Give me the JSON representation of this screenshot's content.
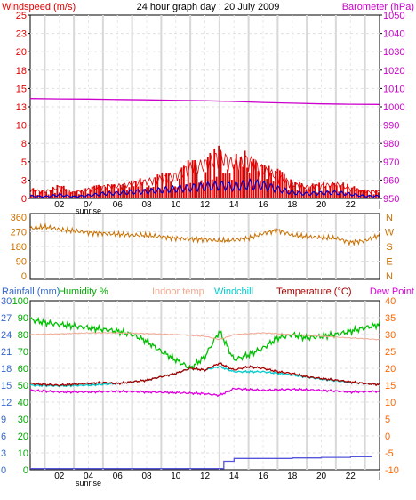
{
  "title": "24 hour graph day : 20 July 2009",
  "colors": {
    "windspeed": "#e00000",
    "windavg": "#0000cc",
    "barometer": "#cc00cc",
    "direction": "#c87000",
    "humidity": "#00c000",
    "rainfall": "#5555dd",
    "indoor": "#f0a890",
    "windchill": "#00cccc",
    "temperature": "#aa0000",
    "dewpoint": "#dd00dd",
    "axis_left_blue": "#3366cc",
    "axis_left_green": "#00aa00",
    "axis_right_orange": "#ff6600"
  },
  "chart_data": [
    {
      "type": "bar",
      "label_left": "Windspeed (m/s)",
      "label_right": "Barometer (hPa)",
      "ticks_left": [
        "25",
        "23",
        "20",
        "18",
        "15",
        "13",
        "10",
        "8",
        "5",
        "3",
        "0"
      ],
      "ticks_right": [
        "1050",
        "1040",
        "1030",
        "1020",
        "1010",
        "1000",
        "990",
        "980",
        "970",
        "960",
        "950"
      ],
      "x_ticks": [
        "02",
        "04",
        "06",
        "08",
        "10",
        "12",
        "14",
        "16",
        "18",
        "20",
        "22"
      ],
      "x_sub": "sunrise",
      "ylim_left": [
        0,
        25
      ],
      "ylim_right": [
        950,
        1050
      ],
      "series": [
        {
          "name": "Windspeed (m/s)",
          "kind": "gust_bars",
          "x": [
            0,
            1,
            2,
            3,
            4,
            5,
            6,
            7,
            8,
            9,
            10,
            11,
            12,
            13,
            14,
            15,
            16,
            17,
            18,
            19,
            20,
            21,
            22,
            23
          ],
          "values": [
            1.5,
            1.2,
            2.0,
            1.0,
            1.6,
            2.0,
            2.2,
            2.5,
            3.0,
            3.5,
            4.0,
            5.5,
            6.0,
            7.5,
            6.0,
            6.8,
            5.0,
            4.0,
            2.5,
            2.0,
            2.2,
            2.5,
            1.8,
            1.2
          ]
        },
        {
          "name": "Wind average",
          "kind": "line",
          "x": [
            0,
            1,
            2,
            3,
            4,
            5,
            6,
            7,
            8,
            9,
            10,
            11,
            12,
            13,
            14,
            15,
            16,
            17,
            18,
            19,
            20,
            21,
            22,
            23
          ],
          "values": [
            0.4,
            0.3,
            0.6,
            0.3,
            0.5,
            0.8,
            0.9,
            1.1,
            1.2,
            1.4,
            1.6,
            1.8,
            2.0,
            2.2,
            2.0,
            2.4,
            2.2,
            1.6,
            1.0,
            0.8,
            0.9,
            1.0,
            0.7,
            0.4
          ]
        },
        {
          "name": "Barometer (hPa)",
          "kind": "line",
          "axis": "right",
          "x": [
            0,
            2,
            4,
            6,
            8,
            10,
            12,
            14,
            16,
            18,
            20,
            22,
            24
          ],
          "values": [
            1004.5,
            1004.3,
            1004.2,
            1004.0,
            1003.8,
            1003.5,
            1003.3,
            1002.9,
            1002.4,
            1002.0,
            1001.6,
            1001.4,
            1001.3
          ]
        }
      ]
    },
    {
      "type": "line",
      "ticks_left": [
        "360",
        "270",
        "180",
        "90",
        "0"
      ],
      "ticks_right": [
        "N",
        "W",
        "S",
        "E",
        "N"
      ],
      "ylim": [
        0,
        360
      ],
      "series": [
        {
          "name": "Wind direction",
          "x": [
            0,
            1,
            2,
            3,
            4,
            5,
            6,
            7,
            8,
            9,
            10,
            11,
            12,
            13,
            14,
            15,
            16,
            17,
            18,
            19,
            20,
            21,
            22,
            23,
            24
          ],
          "values": [
            290,
            300,
            285,
            275,
            265,
            260,
            255,
            250,
            248,
            240,
            230,
            225,
            222,
            215,
            220,
            230,
            260,
            280,
            250,
            240,
            235,
            230,
            205,
            215,
            250
          ]
        }
      ]
    },
    {
      "type": "line",
      "labels": [
        "Rainfall (mm)",
        "Humidity %",
        "Indoor temp",
        "Windchill",
        "Temperature (°C)",
        "Dew Point"
      ],
      "ticks_rain": [
        "30",
        "27",
        "24",
        "21",
        "18",
        "15",
        "12",
        "9",
        "6",
        "3",
        "0"
      ],
      "ticks_humidity": [
        "100",
        "90",
        "80",
        "70",
        "60",
        "50",
        "40",
        "30",
        "20",
        "10",
        "0"
      ],
      "ticks_temp": [
        "40",
        "35",
        "30",
        "25",
        "20",
        "15",
        "10",
        "5",
        "0",
        "-5",
        "-10"
      ],
      "x_ticks": [
        "02",
        "04",
        "06",
        "08",
        "10",
        "12",
        "14",
        "16",
        "18",
        "20",
        "22"
      ],
      "x_sub": "sunrise",
      "ylim_temp": [
        -10,
        40
      ],
      "ylim_humidity": [
        0,
        100
      ],
      "ylim_rain": [
        0,
        30
      ],
      "series": [
        {
          "name": "Humidity %",
          "axis": "humidity",
          "x": [
            0,
            1,
            2,
            3,
            4,
            5,
            6,
            7,
            8,
            9,
            10,
            11,
            12,
            13,
            14,
            15,
            16,
            17,
            18,
            19,
            20,
            21,
            22,
            23,
            24
          ],
          "values": [
            89,
            87,
            86,
            85,
            84,
            83,
            82,
            80,
            76,
            70,
            65,
            60,
            67,
            82,
            65,
            68,
            72,
            78,
            80,
            78,
            79,
            80,
            82,
            84,
            86
          ]
        },
        {
          "name": "Indoor temp",
          "axis": "temp",
          "x": [
            0,
            2,
            4,
            6,
            8,
            10,
            12,
            13,
            14,
            16,
            18,
            20,
            22,
            24
          ],
          "values": [
            30.0,
            30.2,
            30.5,
            30.5,
            30.3,
            30.0,
            29.5,
            28.5,
            30.0,
            30.5,
            30.0,
            29.5,
            29.0,
            28.5
          ]
        },
        {
          "name": "Windchill",
          "axis": "temp",
          "x": [
            0,
            2,
            4,
            6,
            8,
            10,
            11,
            12,
            13,
            14,
            16,
            18,
            20,
            22,
            24
          ],
          "values": [
            15.0,
            14.8,
            15.0,
            15.5,
            16.5,
            18.5,
            20.0,
            19.5,
            20.5,
            19.0,
            19.0,
            18.0,
            16.8,
            15.8,
            15.2
          ]
        },
        {
          "name": "Temperature (°C)",
          "axis": "temp",
          "x": [
            0,
            1,
            2,
            3,
            4,
            5,
            6,
            7,
            8,
            9,
            10,
            11,
            12,
            13,
            14,
            15,
            16,
            17,
            18,
            19,
            20,
            21,
            22,
            23,
            24
          ],
          "values": [
            15.5,
            15.2,
            15.0,
            15.3,
            15.5,
            15.8,
            15.5,
            16.0,
            16.5,
            17.5,
            18.5,
            20.0,
            19.5,
            21.5,
            19.5,
            20.5,
            20.0,
            19.0,
            18.5,
            17.5,
            17.0,
            16.5,
            16.0,
            15.5,
            15.2
          ]
        },
        {
          "name": "Dew Point",
          "axis": "temp",
          "x": [
            0,
            2,
            4,
            6,
            8,
            10,
            12,
            13,
            14,
            16,
            18,
            20,
            22,
            24
          ],
          "values": [
            13.5,
            13.0,
            13.0,
            13.2,
            13.0,
            12.8,
            12.5,
            12.0,
            14.0,
            13.5,
            13.8,
            13.5,
            13.0,
            13.2
          ]
        },
        {
          "name": "Rainfall (mm)",
          "axis": "rain",
          "x": [
            0,
            12.8,
            13.3,
            14,
            16,
            18,
            20,
            22,
            23.5
          ],
          "values": [
            0.2,
            0.2,
            1.5,
            2.0,
            2.0,
            2.1,
            2.2,
            2.3,
            2.3
          ]
        }
      ]
    }
  ]
}
